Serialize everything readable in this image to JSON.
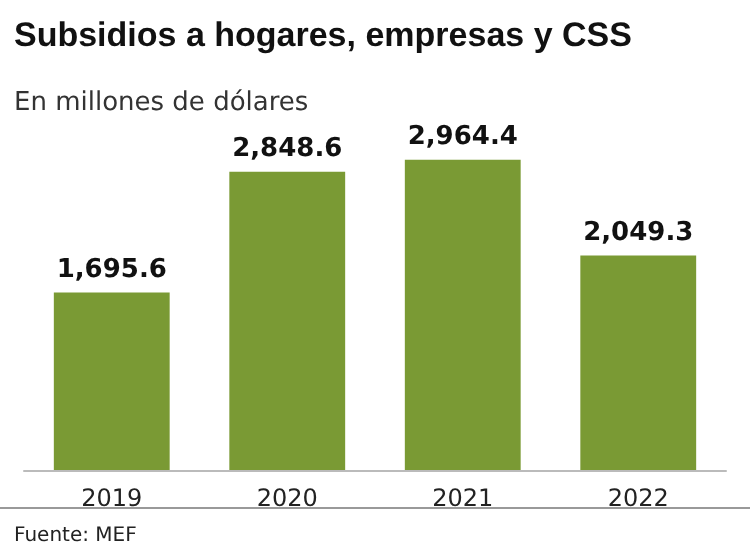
{
  "chart_data": {
    "type": "bar",
    "title": "Subsidios a hogares, empresas y CSS",
    "subtitle": "En millones de dólares",
    "categories": [
      "2019",
      "2020",
      "2021",
      "2022"
    ],
    "values": [
      1695.6,
      2848.6,
      2964.4,
      2049.3
    ],
    "color": "#7a9a34",
    "value_labels": [
      "1,695.6",
      "2,848.6",
      "2,964.4",
      "2,049.3"
    ],
    "annotations": [
      "Fuente: MEF"
    ]
  }
}
